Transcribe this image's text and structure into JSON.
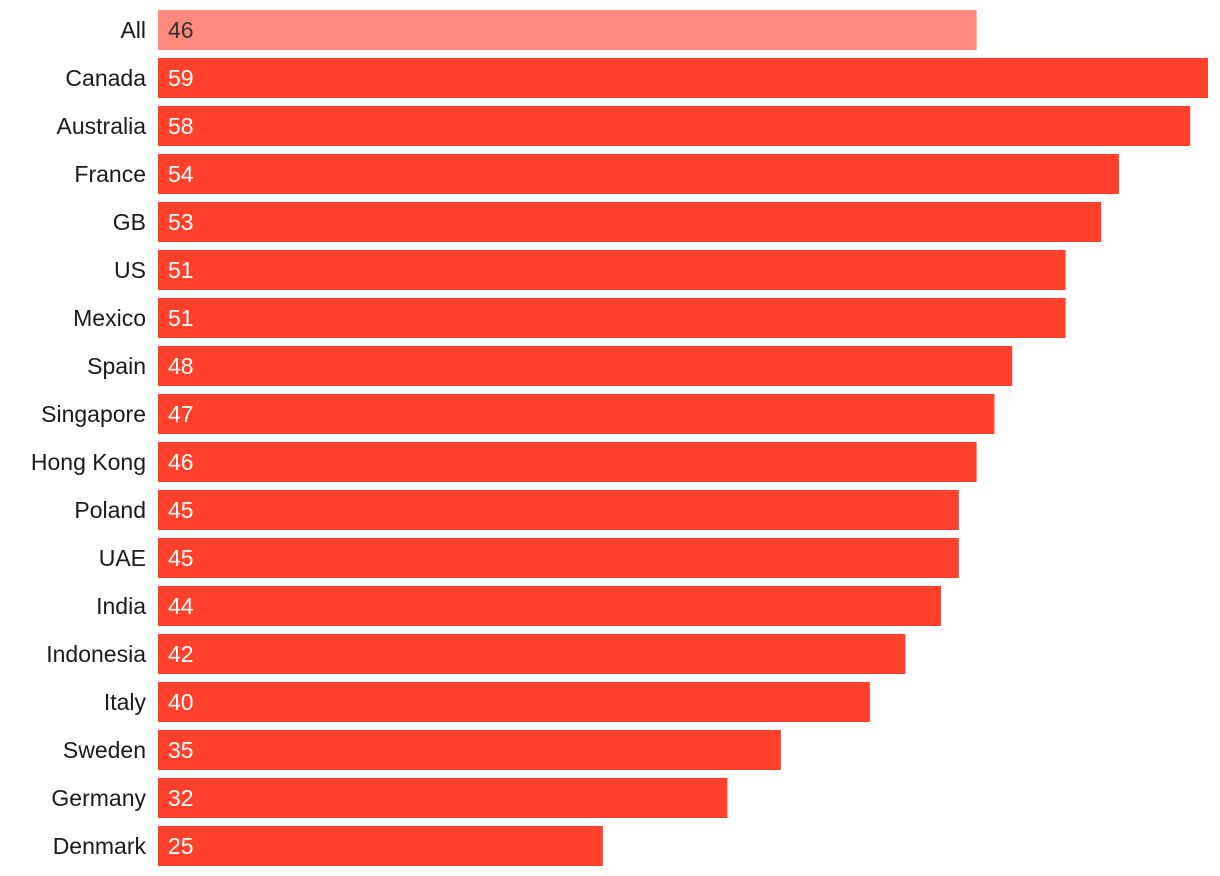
{
  "chart_data": {
    "type": "bar",
    "orientation": "horizontal",
    "categories": [
      "All",
      "Canada",
      "Australia",
      "France",
      "GB",
      "US",
      "Mexico",
      "Spain",
      "Singapore",
      "Hong Kong",
      "Poland",
      "UAE",
      "India",
      "Indonesia",
      "Italy",
      "Sweden",
      "Germany",
      "Denmark"
    ],
    "values": [
      46,
      59,
      58,
      54,
      53,
      51,
      51,
      48,
      47,
      46,
      45,
      45,
      44,
      42,
      40,
      35,
      32,
      25
    ],
    "value_labels": [
      "46",
      "59",
      "58",
      "54",
      "53",
      "51",
      "51",
      "48",
      "47",
      "46",
      "45",
      "45",
      "44",
      "42",
      "40",
      "35",
      "32",
      "25"
    ],
    "title": "",
    "xlabel": "",
    "ylabel": "",
    "xlim": [
      0,
      59
    ],
    "grid": false,
    "legend": "none",
    "highlight_index": 0,
    "colors": {
      "bar": "#ff412c",
      "highlight_bar": "#ff8a7d",
      "category_label": "#1a1a1a",
      "value_label": "#ffffff",
      "highlight_value_label": "#333333"
    }
  }
}
